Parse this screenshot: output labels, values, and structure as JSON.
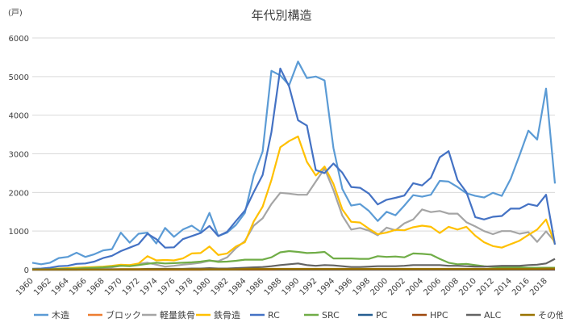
{
  "chart_data": {
    "type": "line",
    "title": "年代別構造",
    "y_unit": "(戸)",
    "ylim": [
      0,
      6000
    ],
    "y_ticks": [
      0,
      1000,
      2000,
      3000,
      4000,
      5000,
      6000
    ],
    "x": [
      1960,
      1961,
      1962,
      1963,
      1964,
      1965,
      1966,
      1967,
      1968,
      1969,
      1970,
      1971,
      1972,
      1973,
      1974,
      1975,
      1976,
      1977,
      1978,
      1979,
      1980,
      1981,
      1982,
      1983,
      1984,
      1985,
      1986,
      1987,
      1988,
      1989,
      1990,
      1991,
      1992,
      1993,
      1994,
      1995,
      1996,
      1997,
      1998,
      1999,
      2000,
      2001,
      2002,
      2003,
      2004,
      2005,
      2006,
      2007,
      2008,
      2009,
      2010,
      2011,
      2012,
      2013,
      2014,
      2015,
      2016,
      2017,
      2018,
      2019
    ],
    "x_tick_labels": [
      "1960",
      "1962",
      "1964",
      "1966",
      "1968",
      "1970",
      "1972",
      "1974",
      "1976",
      "1978",
      "1980",
      "1982",
      "1984",
      "1986",
      "1988",
      "1990",
      "1992",
      "1994",
      "1996",
      "1998",
      "2000",
      "2002",
      "2004",
      "2006",
      "2008",
      "2010",
      "2012",
      "2014",
      "2016",
      "2018"
    ],
    "grid": true,
    "legend_position": "bottom",
    "series": [
      {
        "name": "木造",
        "color": "#5b9bd5",
        "values": [
          180,
          140,
          180,
          300,
          330,
          440,
          330,
          400,
          500,
          530,
          960,
          700,
          930,
          960,
          680,
          1080,
          850,
          1040,
          1140,
          980,
          1470,
          870,
          960,
          1160,
          1470,
          2440,
          3060,
          5150,
          5030,
          4780,
          5390,
          4960,
          5000,
          4900,
          3150,
          2090,
          1660,
          1700,
          1520,
          1260,
          1500,
          1410,
          1660,
          1930,
          1890,
          1940,
          2300,
          2280,
          2140,
          1980,
          1910,
          1870,
          1990,
          1910,
          2350,
          2960,
          3600,
          3370,
          4690,
          2230
        ]
      },
      {
        "name": "ブロック",
        "color": "#ed7d31",
        "values": [
          5,
          5,
          5,
          5,
          5,
          10,
          10,
          10,
          10,
          10,
          15,
          15,
          15,
          15,
          15,
          10,
          10,
          10,
          10,
          10,
          10,
          10,
          10,
          10,
          10,
          10,
          10,
          10,
          10,
          10,
          10,
          10,
          10,
          10,
          10,
          5,
          5,
          5,
          5,
          5,
          5,
          5,
          5,
          5,
          5,
          5,
          5,
          5,
          5,
          5,
          5,
          5,
          5,
          5,
          5,
          5,
          5,
          5,
          5,
          5
        ]
      },
      {
        "name": "軽量鉄骨",
        "color": "#a5a5a5",
        "values": [
          20,
          20,
          20,
          20,
          20,
          30,
          30,
          40,
          50,
          60,
          100,
          120,
          150,
          180,
          130,
          80,
          100,
          130,
          150,
          180,
          230,
          220,
          320,
          560,
          740,
          1140,
          1330,
          1700,
          1990,
          1970,
          1940,
          1940,
          2280,
          2620,
          2060,
          1400,
          1040,
          1080,
          1010,
          890,
          1090,
          1020,
          1200,
          1300,
          1560,
          1490,
          1520,
          1450,
          1450,
          1230,
          1120,
          1000,
          920,
          1000,
          1000,
          930,
          970,
          720,
          990,
          720
        ]
      },
      {
        "name": "鉄骨造",
        "color": "#ffc000",
        "values": [
          20,
          20,
          20,
          30,
          40,
          50,
          60,
          70,
          80,
          100,
          130,
          120,
          160,
          350,
          240,
          250,
          240,
          290,
          420,
          430,
          600,
          380,
          420,
          600,
          710,
          1250,
          1630,
          2320,
          3170,
          3330,
          3450,
          2790,
          2440,
          2670,
          2220,
          1560,
          1240,
          1220,
          1060,
          920,
          960,
          1030,
          1020,
          1100,
          1140,
          1110,
          950,
          1110,
          1040,
          1110,
          880,
          710,
          610,
          570,
          660,
          750,
          900,
          1040,
          1300,
          660
        ]
      },
      {
        "name": "RC",
        "color": "#4472c4",
        "values": [
          20,
          30,
          50,
          90,
          100,
          150,
          160,
          210,
          300,
          360,
          480,
          570,
          660,
          930,
          790,
          570,
          580,
          790,
          870,
          950,
          1130,
          870,
          980,
          1260,
          1530,
          2010,
          2450,
          3560,
          5210,
          4740,
          3870,
          3730,
          2580,
          2500,
          2750,
          2510,
          2140,
          2120,
          1970,
          1690,
          1810,
          1860,
          1920,
          2240,
          2180,
          2380,
          2910,
          3070,
          2320,
          2010,
          1360,
          1300,
          1370,
          1390,
          1580,
          1580,
          1700,
          1650,
          1940,
          650
        ]
      },
      {
        "name": "SRC",
        "color": "#70ad47",
        "values": [
          10,
          10,
          10,
          20,
          20,
          30,
          40,
          50,
          60,
          80,
          100,
          90,
          120,
          150,
          180,
          160,
          170,
          180,
          190,
          210,
          240,
          200,
          210,
          230,
          260,
          260,
          260,
          320,
          450,
          480,
          460,
          430,
          440,
          460,
          290,
          290,
          290,
          280,
          280,
          350,
          330,
          340,
          320,
          420,
          410,
          390,
          280,
          180,
          140,
          150,
          120,
          90,
          70,
          60,
          60,
          60,
          50,
          50,
          50,
          50
        ]
      },
      {
        "name": "PC",
        "color": "#255e91",
        "values": [
          0,
          0,
          0,
          0,
          0,
          0,
          0,
          0,
          0,
          0,
          0,
          0,
          0,
          0,
          0,
          0,
          0,
          0,
          0,
          0,
          0,
          0,
          0,
          0,
          0,
          0,
          0,
          0,
          0,
          0,
          0,
          0,
          0,
          0,
          0,
          0,
          0,
          0,
          0,
          0,
          0,
          0,
          0,
          0,
          0,
          0,
          0,
          0,
          0,
          0,
          0,
          0,
          0,
          0,
          0,
          0,
          0,
          0,
          0,
          0
        ]
      },
      {
        "name": "HPC",
        "color": "#9e480e",
        "values": [
          0,
          0,
          0,
          0,
          0,
          0,
          0,
          0,
          0,
          0,
          0,
          0,
          0,
          0,
          0,
          0,
          0,
          0,
          0,
          0,
          5,
          5,
          5,
          5,
          5,
          5,
          5,
          5,
          10,
          10,
          10,
          10,
          10,
          10,
          10,
          10,
          10,
          10,
          10,
          10,
          10,
          10,
          10,
          10,
          10,
          10,
          10,
          10,
          10,
          10,
          10,
          10,
          10,
          10,
          10,
          10,
          10,
          10,
          10,
          10
        ]
      },
      {
        "name": "ALC",
        "color": "#636363",
        "values": [
          0,
          0,
          0,
          0,
          0,
          0,
          5,
          5,
          5,
          10,
          10,
          10,
          10,
          20,
          20,
          20,
          20,
          20,
          30,
          30,
          40,
          30,
          30,
          40,
          50,
          60,
          70,
          90,
          120,
          140,
          160,
          120,
          100,
          120,
          110,
          90,
          70,
          70,
          80,
          90,
          90,
          90,
          100,
          120,
          120,
          120,
          120,
          100,
          100,
          90,
          80,
          80,
          90,
          100,
          100,
          100,
          120,
          130,
          160,
          280
        ]
      },
      {
        "name": "その他",
        "color": "#997300",
        "values": [
          5,
          5,
          5,
          5,
          5,
          5,
          5,
          5,
          5,
          5,
          10,
          10,
          10,
          10,
          10,
          10,
          10,
          10,
          10,
          10,
          10,
          10,
          10,
          10,
          20,
          20,
          20,
          20,
          20,
          20,
          20,
          20,
          20,
          20,
          20,
          20,
          20,
          20,
          20,
          20,
          20,
          20,
          20,
          20,
          20,
          20,
          20,
          20,
          20,
          20,
          20,
          20,
          20,
          20,
          20,
          20,
          20,
          20,
          30,
          30
        ]
      }
    ]
  }
}
